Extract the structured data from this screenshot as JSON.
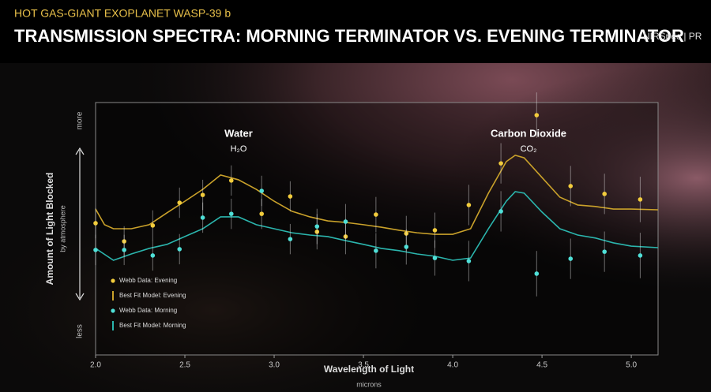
{
  "chart_data": {
    "type": "line",
    "supertitle": "HOT GAS-GIANT EXOPLANET WASP-39 b",
    "title": "TRANSMISSION SPECTRA: MORNING TERMINATOR VS. EVENING TERMINATOR",
    "instrument": "NIRSpec | PR",
    "ylabel": "Amount of Light Blocked",
    "ylabel_sub": "by atmosphere",
    "y_top_label": "more",
    "y_bottom_label": "less",
    "xlabel": "Wavelength of Light",
    "xlabel_sub": "microns",
    "annotations": [
      "Water",
      "H₂O",
      "Carbon Dioxide",
      "CO₂"
    ],
    "xlim": [
      2.0,
      5.15
    ],
    "xticks": [
      {
        "value": 2,
        "label": "2.0"
      },
      2.5,
      {
        "value": 3,
        "label": "3.0"
      },
      3.5,
      {
        "value": 4,
        "label": "4.0"
      },
      4.5,
      {
        "value": 5,
        "label": "5.0"
      }
    ],
    "ylim": [
      0,
      100
    ],
    "series": [
      {
        "name": "Webb Data: Evening",
        "type": "scatter",
        "color": "#f2cc3c",
        "x": [
          2.0,
          2.16,
          2.32,
          2.47,
          2.6,
          2.76,
          2.93,
          3.09,
          3.24,
          3.4,
          3.57,
          3.74,
          3.9,
          4.09,
          4.27,
          4.47,
          4.66,
          4.85,
          5.05
        ],
        "values": [
          52.2,
          45,
          51.3,
          60.3,
          63.4,
          69.1,
          55.9,
          62.8,
          48.8,
          46.9,
          55.6,
          48.1,
          49.4,
          59.4,
          75.9,
          95,
          66.9,
          63.8,
          61.6
        ],
        "errors": [
          6,
          6,
          6,
          6,
          6,
          6,
          6,
          6,
          7,
          7,
          7,
          7,
          7,
          8,
          8,
          9,
          8,
          8,
          9
        ]
      },
      {
        "name": "Best Fit Model: Evening",
        "type": "line",
        "color": "#c9a12a",
        "x": [
          2.0,
          2.05,
          2.1,
          2.2,
          2.3,
          2.4,
          2.5,
          2.6,
          2.7,
          2.8,
          2.9,
          3.0,
          3.1,
          3.2,
          3.3,
          3.4,
          3.5,
          3.6,
          3.7,
          3.8,
          3.9,
          4.0,
          4.1,
          4.2,
          4.3,
          4.35,
          4.4,
          4.5,
          4.6,
          4.7,
          4.8,
          4.9,
          5.0,
          5.15
        ],
        "values": [
          57.8,
          51.6,
          50,
          50,
          51.6,
          56.3,
          60.9,
          65.6,
          71.3,
          69.4,
          65.6,
          60.9,
          56.9,
          54.7,
          53.1,
          52.5,
          51.6,
          50.6,
          49.4,
          48.4,
          47.8,
          47.8,
          50,
          64.1,
          76.6,
          79.1,
          78.1,
          70.3,
          62.5,
          59.4,
          58.8,
          57.8,
          57.8,
          57.5
        ]
      },
      {
        "name": "Webb Data: Morning",
        "type": "scatter",
        "color": "#4fe0d8",
        "x": [
          2.0,
          2.16,
          2.32,
          2.47,
          2.6,
          2.76,
          2.93,
          3.09,
          3.24,
          3.4,
          3.57,
          3.74,
          3.9,
          4.09,
          4.27,
          4.47,
          4.66,
          4.85,
          5.05
        ],
        "values": [
          41.6,
          41.6,
          39.4,
          41.9,
          54.4,
          55.9,
          65,
          45.9,
          50.9,
          52.8,
          41.3,
          42.8,
          38.4,
          37.2,
          56.9,
          32.2,
          38.1,
          40.9,
          39.4
        ],
        "errors": [
          6,
          6,
          6,
          6,
          6,
          6,
          6,
          6,
          7,
          7,
          7,
          7,
          7,
          8,
          8,
          9,
          8,
          8,
          9
        ]
      },
      {
        "name": "Best Fit Model: Morning",
        "type": "line",
        "color": "#2bb5ad",
        "x": [
          2.0,
          2.1,
          2.2,
          2.3,
          2.4,
          2.5,
          2.6,
          2.7,
          2.8,
          2.9,
          3.0,
          3.1,
          3.2,
          3.3,
          3.4,
          3.5,
          3.6,
          3.7,
          3.8,
          3.9,
          4.0,
          4.1,
          4.2,
          4.3,
          4.35,
          4.4,
          4.5,
          4.6,
          4.7,
          4.8,
          4.9,
          5.0,
          5.15
        ],
        "values": [
          42.2,
          37.5,
          40,
          42.2,
          43.8,
          46.9,
          50,
          54.7,
          54.7,
          51.6,
          50,
          48.4,
          47.5,
          46.9,
          45.3,
          43.8,
          42.2,
          41.3,
          40,
          39.1,
          37.5,
          38.4,
          50,
          60.9,
          64.7,
          64.1,
          56.6,
          50,
          47.5,
          46.3,
          44.4,
          43.1,
          42.5
        ]
      }
    ]
  }
}
